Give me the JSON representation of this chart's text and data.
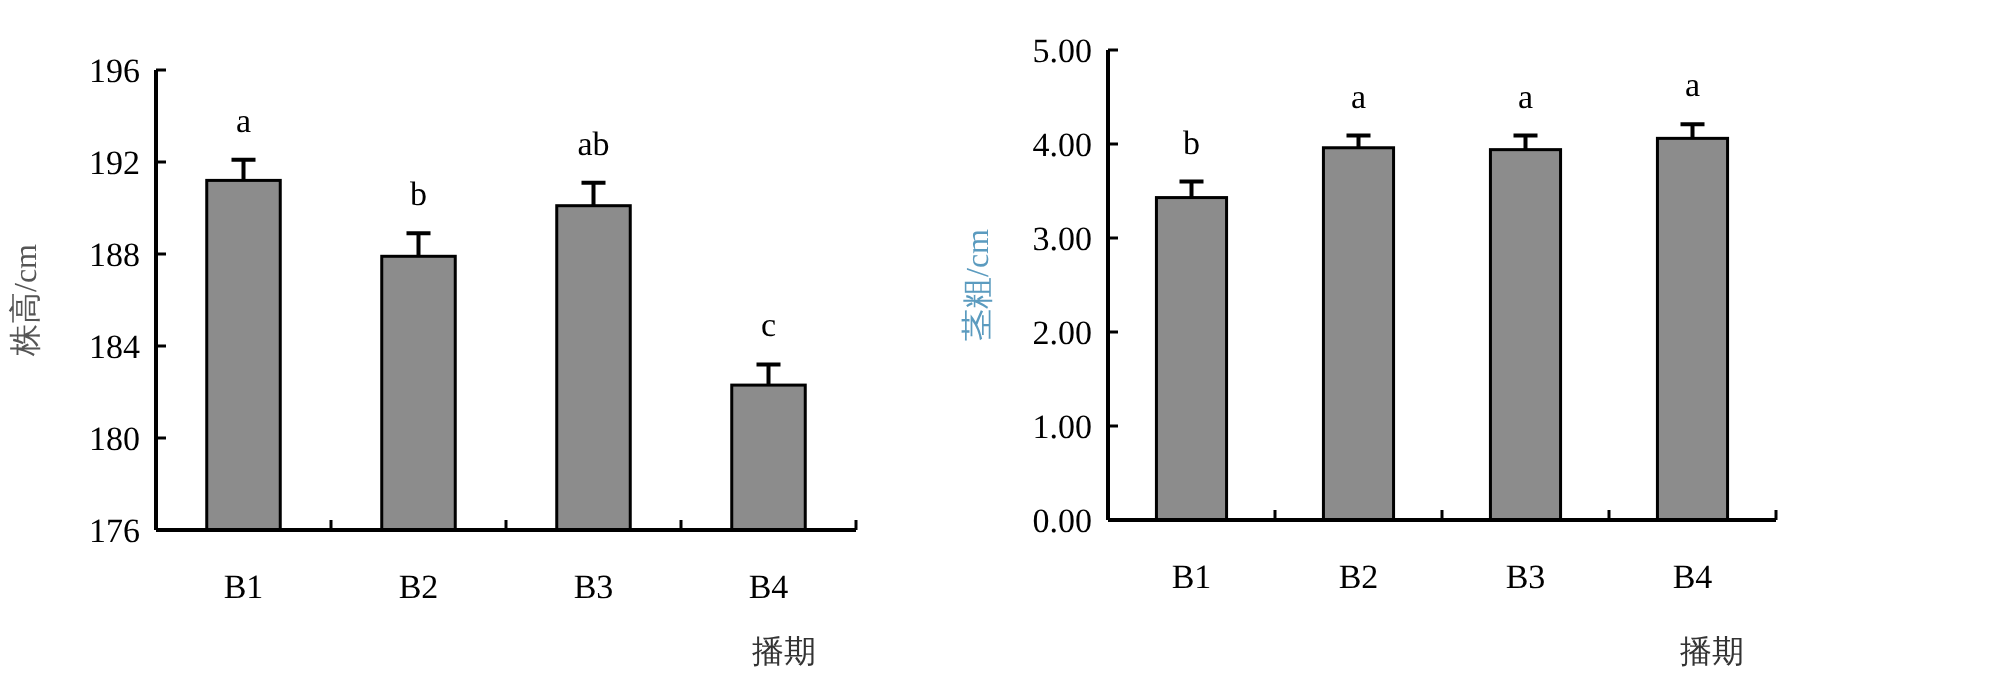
{
  "chart_data": [
    {
      "type": "bar",
      "categories": [
        "B1",
        "B2",
        "B3",
        "B4"
      ],
      "values": [
        191.2,
        187.9,
        190.1,
        182.3
      ],
      "errors": [
        [
          191.2,
          192.1
        ],
        [
          187.9,
          188.9
        ],
        [
          190.1,
          191.1
        ],
        [
          182.3,
          183.2
        ]
      ],
      "color": "#8c8c8c",
      "ylim": [
        176,
        196
      ],
      "yticks": [
        176,
        180,
        184,
        188,
        192,
        196
      ],
      "ylabel": "株高/cm",
      "xlabel": "播期",
      "annotations": [
        "a",
        "b",
        "ab",
        "c"
      ]
    },
    {
      "type": "bar",
      "categories": [
        "B1",
        "B2",
        "B3",
        "B4"
      ],
      "values": [
        3.43,
        3.96,
        3.94,
        4.06
      ],
      "errors": [
        [
          3.43,
          3.6
        ],
        [
          3.96,
          4.09
        ],
        [
          3.94,
          4.09
        ],
        [
          4.06,
          4.21
        ]
      ],
      "color": "#8c8c8c",
      "ylim": [
        0,
        5
      ],
      "yticks": [
        {
          "value": 0,
          "label": "0.00"
        },
        {
          "value": 1,
          "label": "1.00"
        },
        {
          "value": 2,
          "label": "2.00"
        },
        {
          "value": 3,
          "label": "3.00"
        },
        {
          "value": 4,
          "label": "4.00"
        },
        {
          "value": 5,
          "label": "5.00"
        }
      ],
      "ylabel": "茎粗/cm",
      "xlabel": "播期",
      "annotations": [
        "b",
        "a",
        "a",
        "a"
      ]
    }
  ]
}
